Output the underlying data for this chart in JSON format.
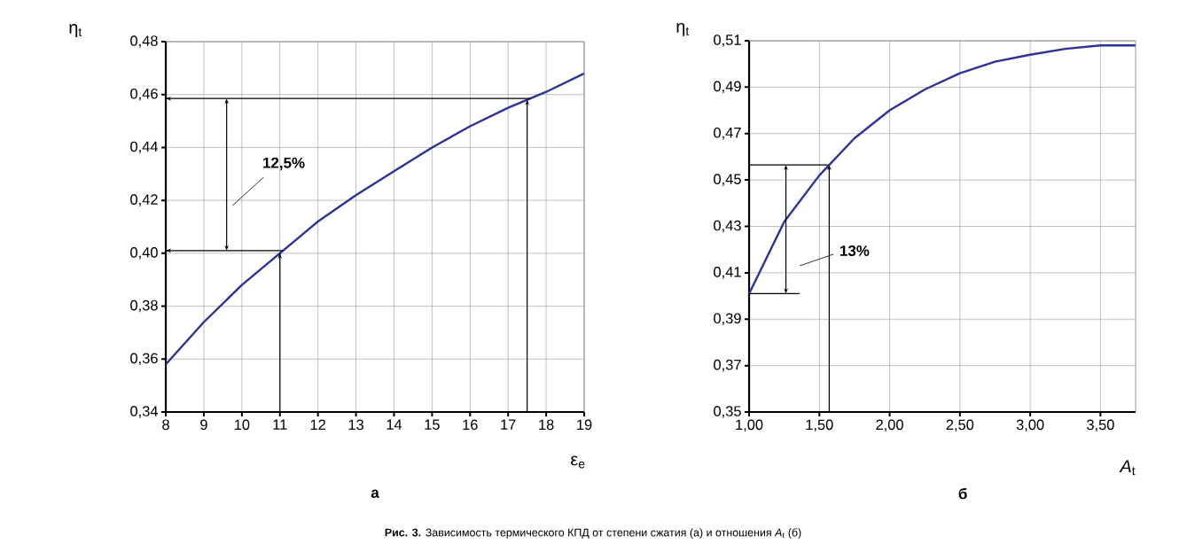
{
  "chart_data": [
    {
      "type": "line",
      "title": "а",
      "xlabel": "ε$_{e}$",
      "ylabel": "η$_{t}$",
      "x": [
        8,
        9,
        10,
        11,
        12,
        13,
        14,
        15,
        16,
        17,
        18,
        19
      ],
      "series": [
        {
          "color": "#2b3399",
          "values": [
            0.358,
            0.374,
            0.388,
            0.4,
            0.412,
            0.422,
            0.431,
            0.44,
            0.448,
            0.455,
            0.461,
            0.468
          ]
        }
      ],
      "xlim": [
        8,
        19
      ],
      "ylim": [
        0.34,
        0.48
      ],
      "xticks": [
        8,
        9,
        10,
        11,
        12,
        13,
        14,
        15,
        16,
        17,
        18,
        19
      ],
      "yticks": [
        {
          "value": 0.34,
          "label": "0,34"
        },
        {
          "value": 0.36,
          "label": "0,36"
        },
        {
          "value": 0.38,
          "label": "0,38"
        },
        {
          "value": 0.4,
          "label": "0,40"
        },
        {
          "value": 0.42,
          "label": "0,42"
        },
        {
          "value": 0.44,
          "label": "0,44"
        },
        {
          "value": 0.46,
          "label": "0,46"
        },
        {
          "value": 0.48,
          "label": "0,48"
        }
      ],
      "grid": true,
      "ref_lines": [
        {
          "axis": "y",
          "value": 0.4585
        },
        {
          "axis": "y",
          "value": 0.401
        },
        {
          "axis": "x",
          "value": 11
        },
        {
          "axis": "x",
          "value": 17.5
        }
      ],
      "annotations": [
        "12,5%",
        "**Рис. 3.** Зависимость термического КПД от степени сжатия (а) и отношения *A*$_{t}$ (б)"
      ]
    },
    {
      "type": "line",
      "title": "б",
      "xlabel": "*A*$_{t}$",
      "ylabel": "η$_{t}$",
      "x": [
        1.0,
        1.25,
        1.5,
        1.75,
        2.0,
        2.25,
        2.5,
        2.75,
        3.0,
        3.25,
        3.5,
        3.75
      ],
      "series": [
        {
          "color": "#2b3399",
          "values": [
            0.401,
            0.432,
            0.452,
            0.468,
            0.48,
            0.489,
            0.496,
            0.501,
            0.504,
            0.5065,
            0.508,
            0.508
          ]
        }
      ],
      "xlim": [
        1.0,
        3.75
      ],
      "ylim": [
        0.35,
        0.51
      ],
      "xticks": [
        {
          "value": 1.0,
          "label": "1,00"
        },
        {
          "value": 1.5,
          "label": "1,50"
        },
        {
          "value": 2.0,
          "label": "2,00"
        },
        {
          "value": 2.5,
          "label": "2,50"
        },
        {
          "value": 3.0,
          "label": "3,00"
        },
        {
          "value": 3.5,
          "label": "3,50"
        }
      ],
      "yticks": [
        {
          "value": 0.35,
          "label": "0,35"
        },
        {
          "value": 0.37,
          "label": "0,37"
        },
        {
          "value": 0.39,
          "label": "0,39"
        },
        {
          "value": 0.41,
          "label": "0,41"
        },
        {
          "value": 0.43,
          "label": "0,43"
        },
        {
          "value": 0.45,
          "label": "0,45"
        },
        {
          "value": 0.47,
          "label": "0,47"
        },
        {
          "value": 0.49,
          "label": "0,49"
        },
        {
          "value": 0.51,
          "label": "0,51"
        }
      ],
      "grid": true,
      "annotations": [
        "13%"
      ]
    }
  ]
}
